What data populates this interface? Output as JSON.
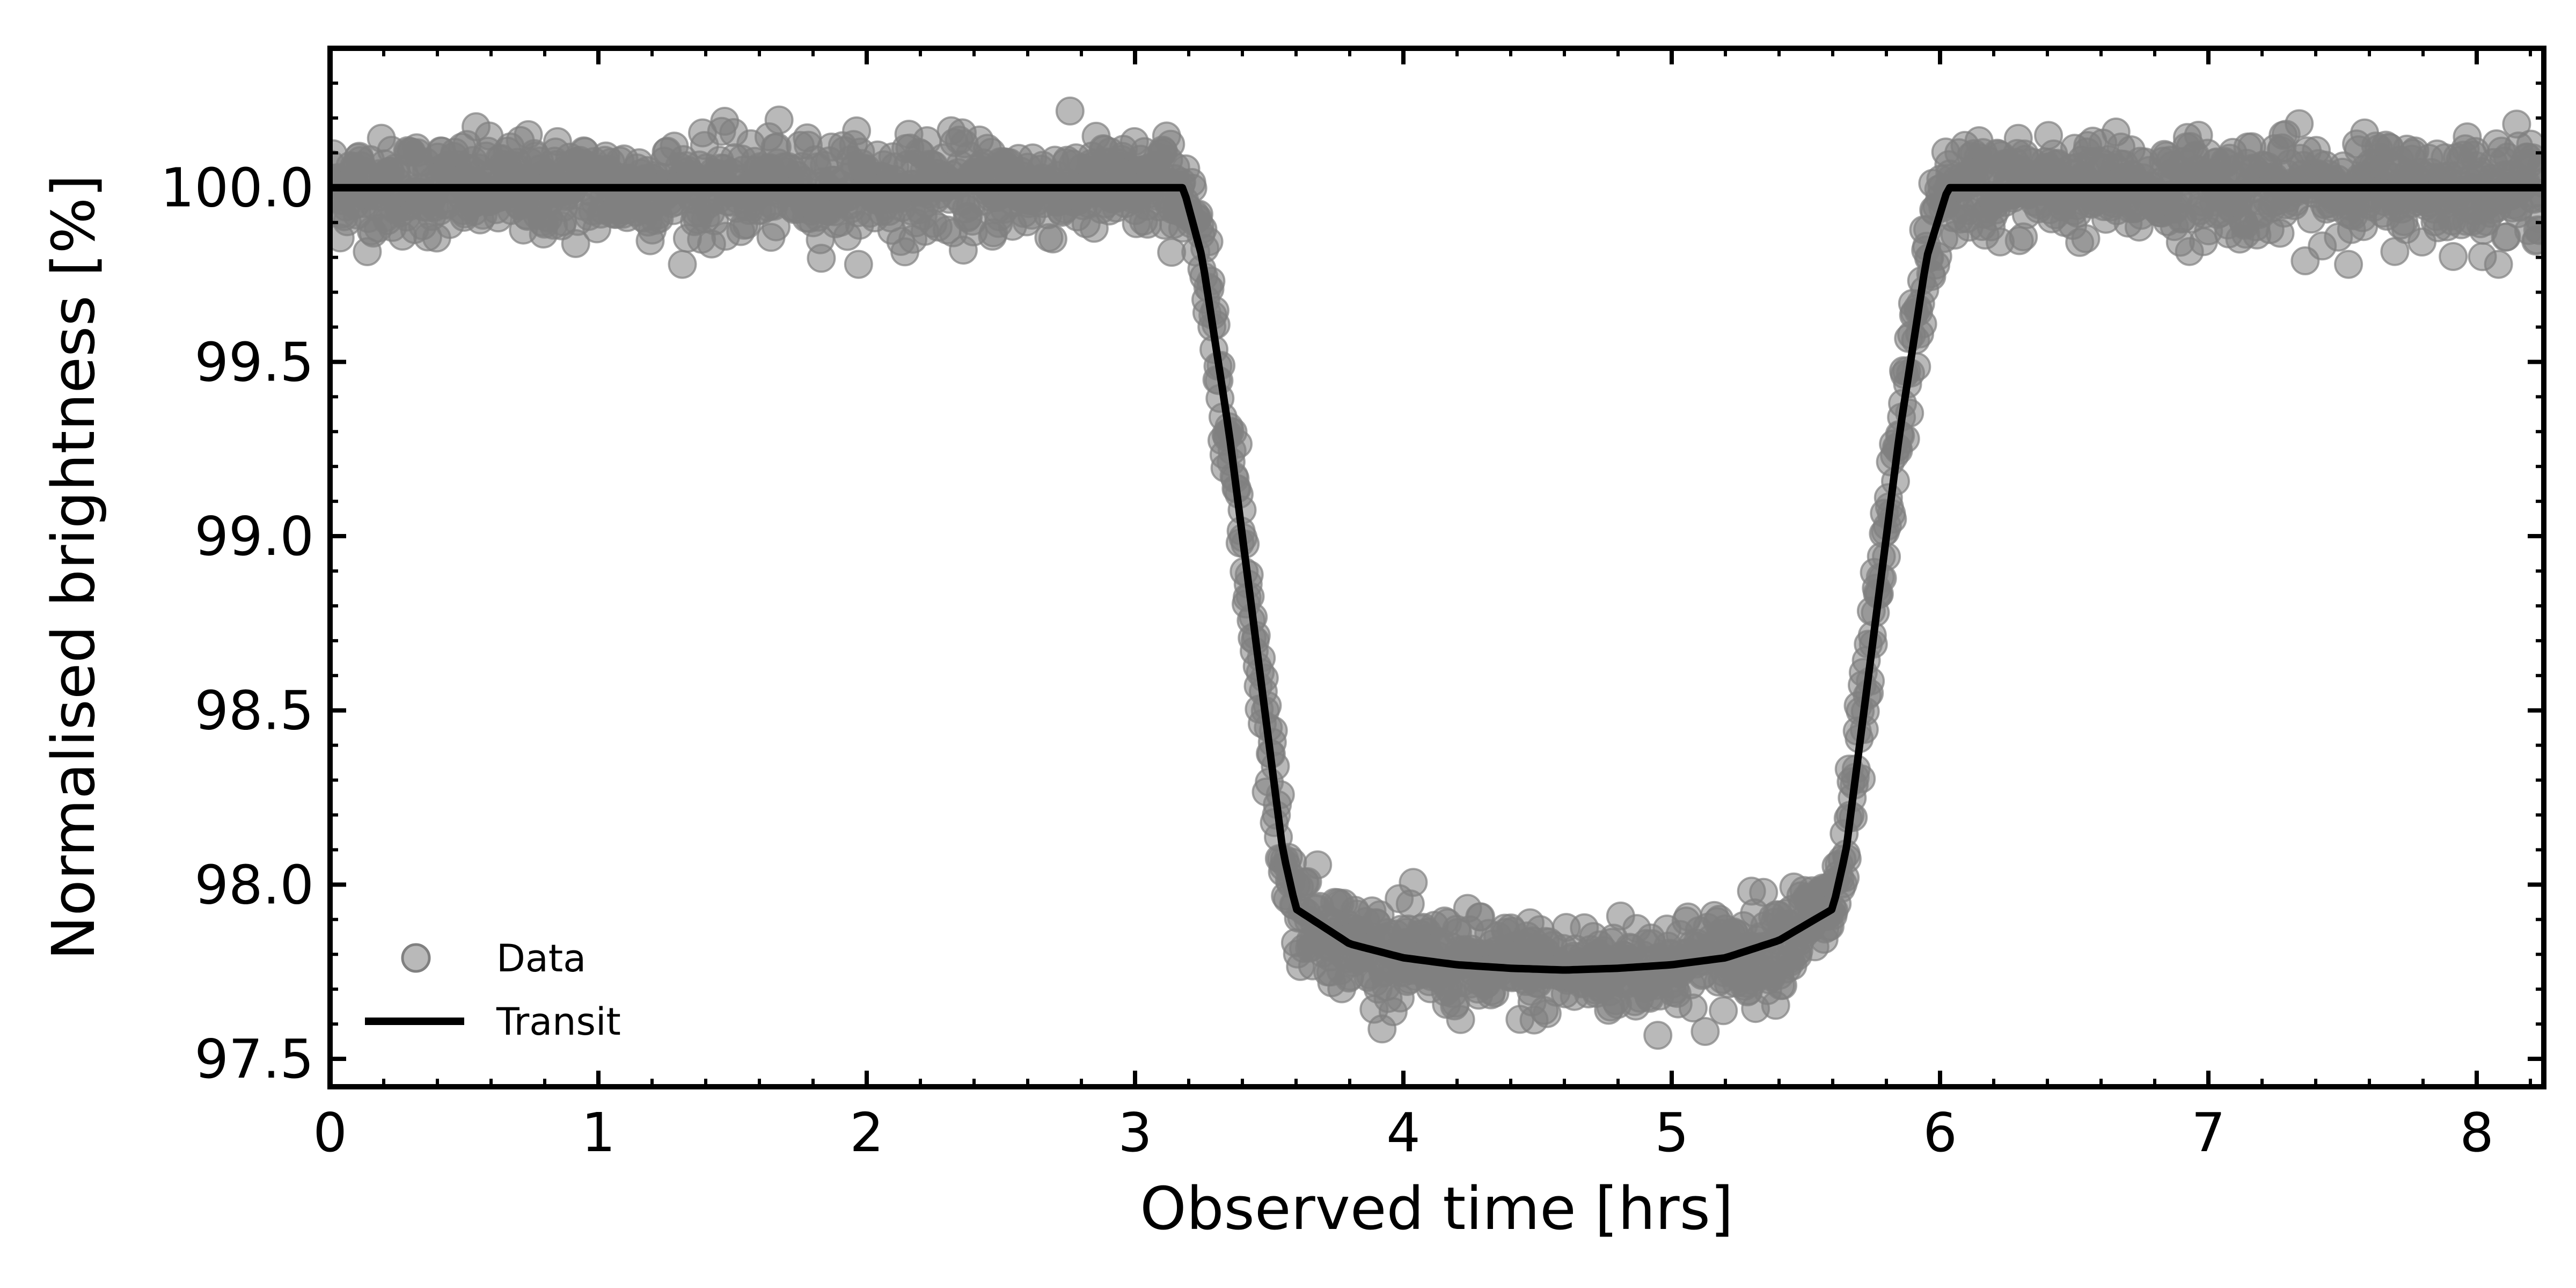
{
  "chart_data": {
    "type": "scatter",
    "title": "",
    "xlabel": "Observed time [hrs]",
    "ylabel": "Normalised brightness [%]",
    "xlim": [
      0,
      8.25
    ],
    "ylim": [
      97.42,
      100.4
    ],
    "xticks": [
      0,
      1,
      2,
      3,
      4,
      5,
      6,
      7,
      8
    ],
    "xtick_labels": [
      "0",
      "1",
      "2",
      "3",
      "4",
      "5",
      "6",
      "7",
      "8"
    ],
    "yticks": [
      97.5,
      98.0,
      98.5,
      99.0,
      99.5,
      100.0
    ],
    "ytick_labels": [
      "97.5",
      "98.0",
      "98.5",
      "99.0",
      "99.5",
      "100.0"
    ],
    "grid": false,
    "ticks_direction": "in",
    "legend": {
      "placement": "lower-left",
      "entries": [
        "Data",
        "Transit"
      ]
    },
    "series": [
      {
        "name": "Data",
        "kind": "scatter",
        "color": "#808080",
        "description_free": true,
        "noise_sigma": 0.07,
        "x_range": [
          0,
          8.25
        ]
      },
      {
        "name": "Transit",
        "kind": "line",
        "color": "#000000",
        "x": [
          0,
          3.18,
          3.25,
          3.35,
          3.45,
          3.55,
          3.6,
          3.8,
          4.0,
          4.2,
          4.4,
          4.6,
          4.8,
          5.0,
          5.2,
          5.4,
          5.6,
          5.65,
          5.75,
          5.85,
          5.95,
          6.03,
          8.25
        ],
        "y": [
          100.0,
          100.0,
          99.8,
          99.3,
          98.7,
          98.1,
          97.93,
          97.83,
          97.79,
          97.77,
          97.76,
          97.755,
          97.76,
          97.77,
          97.79,
          97.84,
          97.93,
          98.1,
          98.7,
          99.3,
          99.8,
          100.0,
          100.0
        ]
      }
    ]
  }
}
